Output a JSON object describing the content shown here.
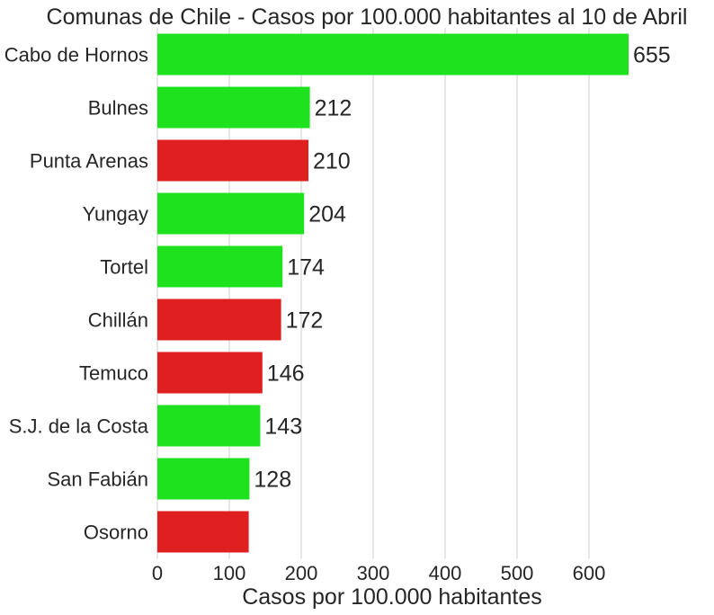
{
  "chart_data": {
    "type": "bar",
    "orientation": "horizontal",
    "title": "Comunas de Chile - Casos por 100.000 habitantes al 10 de Abril",
    "xlabel": "Casos por 100.000 habitantes",
    "ylabel": "",
    "xlim": [
      0,
      655
    ],
    "xticks": [
      0,
      100,
      200,
      300,
      400,
      500,
      600
    ],
    "grid": "vertical",
    "categories": [
      "Cabo de Hornos",
      "Bulnes",
      "Punta Arenas",
      "Yungay",
      "Tortel",
      "Chillán",
      "Temuco",
      "S.J. de la Costa",
      "San Fabián",
      "Osorno"
    ],
    "values": [
      655,
      212,
      210,
      204,
      174,
      172,
      146,
      143,
      128,
      127
    ],
    "data_labels": [
      "655",
      "212",
      "210",
      "204",
      "174",
      "172",
      "146",
      "143",
      "128",
      ""
    ],
    "bar_colors": [
      "#1fe21f",
      "#1fe21f",
      "#e02020",
      "#1fe21f",
      "#1fe21f",
      "#e02020",
      "#e02020",
      "#1fe21f",
      "#1fe21f",
      "#e02020"
    ]
  }
}
